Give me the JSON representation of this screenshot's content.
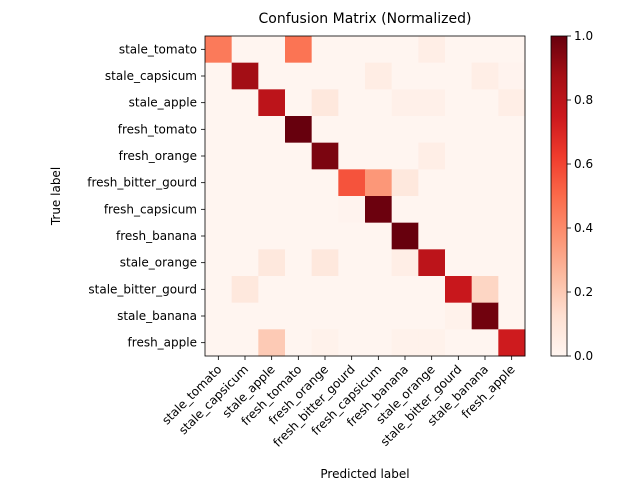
{
  "chart_data": {
    "type": "heatmap",
    "title": "Confusion Matrix (Normalized)",
    "x_label": "Predicted label",
    "y_label": "True label",
    "categories": [
      "stale_tomato",
      "stale_capsicum",
      "stale_apple",
      "fresh_tomato",
      "fresh_orange",
      "fresh_bitter_gourd",
      "fresh_capsicum",
      "fresh_banana",
      "stale_orange",
      "stale_bitter_gourd",
      "stale_banana",
      "fresh_apple"
    ],
    "values": [
      [
        0.45,
        0,
        0,
        0.47,
        0,
        0,
        0,
        0,
        0.04,
        0,
        0,
        0
      ],
      [
        0,
        0.88,
        0,
        0,
        0,
        0,
        0.05,
        0,
        0,
        0,
        0.04,
        0.01
      ],
      [
        0,
        0,
        0.8,
        0,
        0.08,
        0,
        0,
        0.03,
        0.03,
        0,
        0,
        0.04
      ],
      [
        0,
        0,
        0,
        1.0,
        0,
        0,
        0,
        0,
        0,
        0,
        0,
        0
      ],
      [
        0,
        0,
        0,
        0,
        0.96,
        0,
        0,
        0,
        0.04,
        0,
        0,
        0
      ],
      [
        0,
        0,
        0,
        0,
        0,
        0.56,
        0.36,
        0.08,
        0,
        0,
        0,
        0
      ],
      [
        0,
        0,
        0,
        0,
        0,
        0.01,
        0.99,
        0,
        0,
        0,
        0,
        0
      ],
      [
        0,
        0,
        0,
        0,
        0,
        0,
        0,
        1.0,
        0,
        0,
        0,
        0
      ],
      [
        0,
        0,
        0.08,
        0,
        0.08,
        0,
        0,
        0.04,
        0.8,
        0,
        0,
        0
      ],
      [
        0,
        0.08,
        0,
        0,
        0,
        0,
        0,
        0,
        0,
        0.76,
        0.16,
        0
      ],
      [
        0,
        0,
        0,
        0,
        0,
        0,
        0,
        0,
        0,
        0.02,
        0.98,
        0
      ],
      [
        0,
        0,
        0.2,
        0,
        0.02,
        0,
        0,
        0.02,
        0.02,
        0,
        0,
        0.74
      ]
    ],
    "colorscale": [
      "#fff5f0",
      "#fee0d2",
      "#fcbba1",
      "#fc9272",
      "#fb6a4a",
      "#ef3b2c",
      "#cb181d",
      "#a50f15",
      "#67000d"
    ],
    "zlim": [
      0,
      1
    ],
    "zticks": [
      {
        "value": 0,
        "label": "0.0"
      },
      {
        "value": 0.2,
        "label": "0.2"
      },
      {
        "value": 0.4,
        "label": "0.4"
      },
      {
        "value": 0.6,
        "label": "0.6"
      },
      {
        "value": 0.8,
        "label": "0.8"
      },
      {
        "value": 1,
        "label": "1.0"
      }
    ]
  }
}
